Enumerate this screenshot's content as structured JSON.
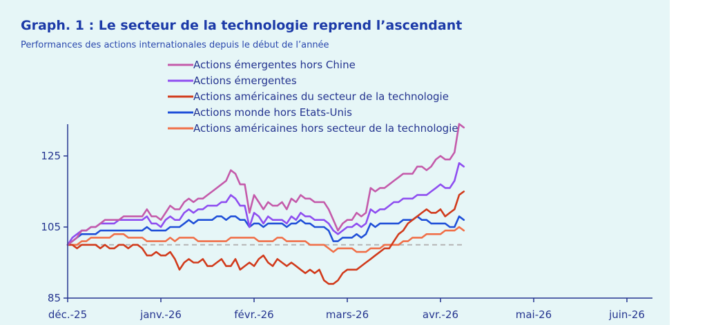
{
  "title": "Graph. 1 : Le secteur de la technologie reprend l’ascendant",
  "subtitle": "Performances des actions internationales depuis le début de l’année",
  "chart_data": {
    "type": "line",
    "x_categories": [
      "déc.-25",
      "janv.-26",
      "févr.-26",
      "mars-26",
      "avr.-26",
      "mai-26",
      "juin-26"
    ],
    "ylim": [
      85,
      138
    ],
    "yticks": [
      85,
      105,
      125
    ],
    "grid": false,
    "legend_position": "top",
    "reference_line": {
      "value": 100,
      "color": "#b3b3b3",
      "style": "dashed"
    },
    "colors": {
      "axis": "#24348f"
    },
    "series": [
      {
        "name": "Actions émergentes hors Chine",
        "color": "#c45aaa",
        "x": [
          0.0,
          0.05,
          0.1,
          0.15,
          0.2,
          0.25,
          0.3,
          0.35,
          0.4,
          0.45,
          0.5,
          0.55,
          0.6,
          0.65,
          0.7,
          0.75,
          0.8,
          0.85,
          0.9,
          0.95,
          1.0,
          1.05,
          1.1,
          1.15,
          1.2,
          1.25,
          1.3,
          1.35,
          1.4,
          1.45,
          1.5,
          1.55,
          1.6,
          1.65,
          1.7,
          1.75,
          1.8,
          1.85,
          1.9,
          1.95,
          2.0,
          2.05,
          2.1,
          2.15,
          2.2,
          2.25,
          2.3,
          2.35,
          2.4,
          2.45,
          2.5,
          2.55,
          2.6,
          2.65,
          2.7,
          2.75,
          2.8,
          2.85,
          2.9,
          2.95,
          3.0,
          3.05,
          3.1,
          3.15,
          3.2,
          3.25,
          3.3,
          3.35,
          3.4,
          3.45,
          3.5,
          3.55,
          3.6,
          3.65,
          3.7,
          3.75,
          3.8,
          3.85,
          3.9,
          3.95,
          4.0,
          4.05,
          4.1,
          4.15,
          4.2,
          4.25
        ],
        "values": [
          100,
          101,
          102,
          104,
          104,
          105,
          105,
          106,
          107,
          107,
          107,
          107,
          108,
          108,
          108,
          108,
          108,
          110,
          108,
          108,
          107,
          109,
          111,
          110,
          110,
          112,
          113,
          112,
          113,
          113,
          114,
          115,
          116,
          117,
          118,
          121,
          120,
          117,
          117,
          109,
          114,
          112,
          110,
          112,
          111,
          111,
          112,
          110,
          113,
          112,
          114,
          113,
          113,
          112,
          112,
          112,
          110,
          107,
          104,
          106,
          107,
          107,
          109,
          108,
          109,
          116,
          115,
          116,
          116,
          117,
          118,
          119,
          120,
          120,
          120,
          122,
          122,
          121,
          122,
          124,
          125,
          124,
          124,
          126,
          134,
          133
        ]
      },
      {
        "name": "Actions émergentes",
        "color": "#8e4df0",
        "x": [
          0.0,
          0.05,
          0.1,
          0.15,
          0.2,
          0.25,
          0.3,
          0.35,
          0.4,
          0.45,
          0.5,
          0.55,
          0.6,
          0.65,
          0.7,
          0.75,
          0.8,
          0.85,
          0.9,
          0.95,
          1.0,
          1.05,
          1.1,
          1.15,
          1.2,
          1.25,
          1.3,
          1.35,
          1.4,
          1.45,
          1.5,
          1.55,
          1.6,
          1.65,
          1.7,
          1.75,
          1.8,
          1.85,
          1.9,
          1.95,
          2.0,
          2.05,
          2.1,
          2.15,
          2.2,
          2.25,
          2.3,
          2.35,
          2.4,
          2.45,
          2.5,
          2.55,
          2.6,
          2.65,
          2.7,
          2.75,
          2.8,
          2.85,
          2.9,
          2.95,
          3.0,
          3.05,
          3.1,
          3.15,
          3.2,
          3.25,
          3.3,
          3.35,
          3.4,
          3.45,
          3.5,
          3.55,
          3.6,
          3.65,
          3.7,
          3.75,
          3.8,
          3.85,
          3.9,
          3.95,
          4.0,
          4.05,
          4.1,
          4.15,
          4.2,
          4.25
        ],
        "values": [
          100,
          102,
          103,
          104,
          104,
          105,
          105,
          106,
          106,
          106,
          106,
          107,
          107,
          107,
          107,
          107,
          107,
          108,
          106,
          106,
          105,
          107,
          108,
          107,
          107,
          109,
          110,
          109,
          110,
          110,
          111,
          111,
          111,
          112,
          112,
          114,
          113,
          111,
          111,
          105,
          109,
          108,
          106,
          108,
          107,
          107,
          107,
          106,
          108,
          107,
          109,
          108,
          108,
          107,
          107,
          107,
          106,
          104,
          103,
          104,
          105,
          105,
          106,
          105,
          106,
          110,
          109,
          110,
          110,
          111,
          112,
          112,
          113,
          113,
          113,
          114,
          114,
          114,
          115,
          116,
          117,
          116,
          116,
          118,
          123,
          122
        ]
      },
      {
        "name": "Actions américaines du secteur de la technologie",
        "color": "#d13a1b",
        "x": [
          0.0,
          0.05,
          0.1,
          0.15,
          0.2,
          0.25,
          0.3,
          0.35,
          0.4,
          0.45,
          0.5,
          0.55,
          0.6,
          0.65,
          0.7,
          0.75,
          0.8,
          0.85,
          0.9,
          0.95,
          1.0,
          1.05,
          1.1,
          1.15,
          1.2,
          1.25,
          1.3,
          1.35,
          1.4,
          1.45,
          1.5,
          1.55,
          1.6,
          1.65,
          1.7,
          1.75,
          1.8,
          1.85,
          1.9,
          1.95,
          2.0,
          2.05,
          2.1,
          2.15,
          2.2,
          2.25,
          2.3,
          2.35,
          2.4,
          2.45,
          2.5,
          2.55,
          2.6,
          2.65,
          2.7,
          2.75,
          2.8,
          2.85,
          2.9,
          2.95,
          3.0,
          3.05,
          3.1,
          3.15,
          3.2,
          3.25,
          3.3,
          3.35,
          3.4,
          3.45,
          3.5,
          3.55,
          3.6,
          3.65,
          3.7,
          3.75,
          3.8,
          3.85,
          3.9,
          3.95,
          4.0,
          4.05,
          4.1,
          4.15,
          4.2,
          4.25
        ],
        "values": [
          100,
          100,
          99,
          100,
          100,
          100,
          100,
          99,
          100,
          99,
          99,
          100,
          100,
          99,
          100,
          100,
          99,
          97,
          97,
          98,
          97,
          97,
          98,
          96,
          93,
          95,
          96,
          95,
          95,
          96,
          94,
          94,
          95,
          96,
          94,
          94,
          96,
          93,
          94,
          95,
          94,
          96,
          97,
          95,
          94,
          96,
          95,
          94,
          95,
          94,
          93,
          92,
          93,
          92,
          93,
          90,
          89,
          89,
          90,
          92,
          93,
          93,
          93,
          94,
          95,
          96,
          97,
          98,
          99,
          99,
          101,
          103,
          104,
          106,
          107,
          108,
          109,
          110,
          109,
          109,
          110,
          108,
          109,
          110,
          114,
          115
        ]
      },
      {
        "name": "Actions monde hors Etats-Unis",
        "color": "#1f4fd8",
        "x": [
          0.0,
          0.05,
          0.1,
          0.15,
          0.2,
          0.25,
          0.3,
          0.35,
          0.4,
          0.45,
          0.5,
          0.55,
          0.6,
          0.65,
          0.7,
          0.75,
          0.8,
          0.85,
          0.9,
          0.95,
          1.0,
          1.05,
          1.1,
          1.15,
          1.2,
          1.25,
          1.3,
          1.35,
          1.4,
          1.45,
          1.5,
          1.55,
          1.6,
          1.65,
          1.7,
          1.75,
          1.8,
          1.85,
          1.9,
          1.95,
          2.0,
          2.05,
          2.1,
          2.15,
          2.2,
          2.25,
          2.3,
          2.35,
          2.4,
          2.45,
          2.5,
          2.55,
          2.6,
          2.65,
          2.7,
          2.75,
          2.8,
          2.85,
          2.9,
          2.95,
          3.0,
          3.05,
          3.1,
          3.15,
          3.2,
          3.25,
          3.3,
          3.35,
          3.4,
          3.45,
          3.5,
          3.55,
          3.6,
          3.65,
          3.7,
          3.75,
          3.8,
          3.85,
          3.9,
          3.95,
          4.0,
          4.05,
          4.1,
          4.15,
          4.2,
          4.25
        ],
        "values": [
          100,
          101,
          102,
          103,
          103,
          103,
          103,
          104,
          104,
          104,
          104,
          104,
          104,
          104,
          104,
          104,
          104,
          105,
          104,
          104,
          104,
          104,
          105,
          105,
          105,
          106,
          107,
          106,
          107,
          107,
          107,
          107,
          108,
          108,
          107,
          108,
          108,
          107,
          107,
          105,
          106,
          106,
          105,
          106,
          106,
          106,
          106,
          105,
          106,
          106,
          107,
          106,
          106,
          105,
          105,
          105,
          104,
          101,
          101,
          102,
          102,
          102,
          103,
          102,
          103,
          106,
          105,
          106,
          106,
          106,
          106,
          106,
          107,
          107,
          107,
          108,
          107,
          107,
          106,
          106,
          106,
          106,
          105,
          105,
          108,
          107
        ]
      },
      {
        "name": "Actions américaines hors secteur de la technologie",
        "color": "#f06f48",
        "x": [
          0.0,
          0.05,
          0.1,
          0.15,
          0.2,
          0.25,
          0.3,
          0.35,
          0.4,
          0.45,
          0.5,
          0.55,
          0.6,
          0.65,
          0.7,
          0.75,
          0.8,
          0.85,
          0.9,
          0.95,
          1.0,
          1.05,
          1.1,
          1.15,
          1.2,
          1.25,
          1.3,
          1.35,
          1.4,
          1.45,
          1.5,
          1.55,
          1.6,
          1.65,
          1.7,
          1.75,
          1.8,
          1.85,
          1.9,
          1.95,
          2.0,
          2.05,
          2.1,
          2.15,
          2.2,
          2.25,
          2.3,
          2.35,
          2.4,
          2.45,
          2.5,
          2.55,
          2.6,
          2.65,
          2.7,
          2.75,
          2.8,
          2.85,
          2.9,
          2.95,
          3.0,
          3.05,
          3.1,
          3.15,
          3.2,
          3.25,
          3.3,
          3.35,
          3.4,
          3.45,
          3.5,
          3.55,
          3.6,
          3.65,
          3.7,
          3.75,
          3.8,
          3.85,
          3.9,
          3.95,
          4.0,
          4.05,
          4.1,
          4.15,
          4.2,
          4.25
        ],
        "values": [
          100,
          100,
          100,
          101,
          101,
          102,
          102,
          102,
          102,
          102,
          103,
          103,
          103,
          102,
          102,
          102,
          102,
          101,
          101,
          101,
          101,
          101,
          102,
          101,
          102,
          102,
          102,
          102,
          101,
          101,
          101,
          101,
          101,
          101,
          101,
          102,
          102,
          102,
          102,
          102,
          102,
          101,
          101,
          101,
          101,
          102,
          102,
          101,
          101,
          101,
          101,
          101,
          100,
          100,
          100,
          100,
          99,
          98,
          99,
          99,
          99,
          99,
          98,
          98,
          98,
          99,
          99,
          99,
          100,
          100,
          100,
          100,
          101,
          101,
          102,
          102,
          102,
          103,
          103,
          103,
          103,
          104,
          104,
          104,
          105,
          104
        ]
      }
    ]
  }
}
